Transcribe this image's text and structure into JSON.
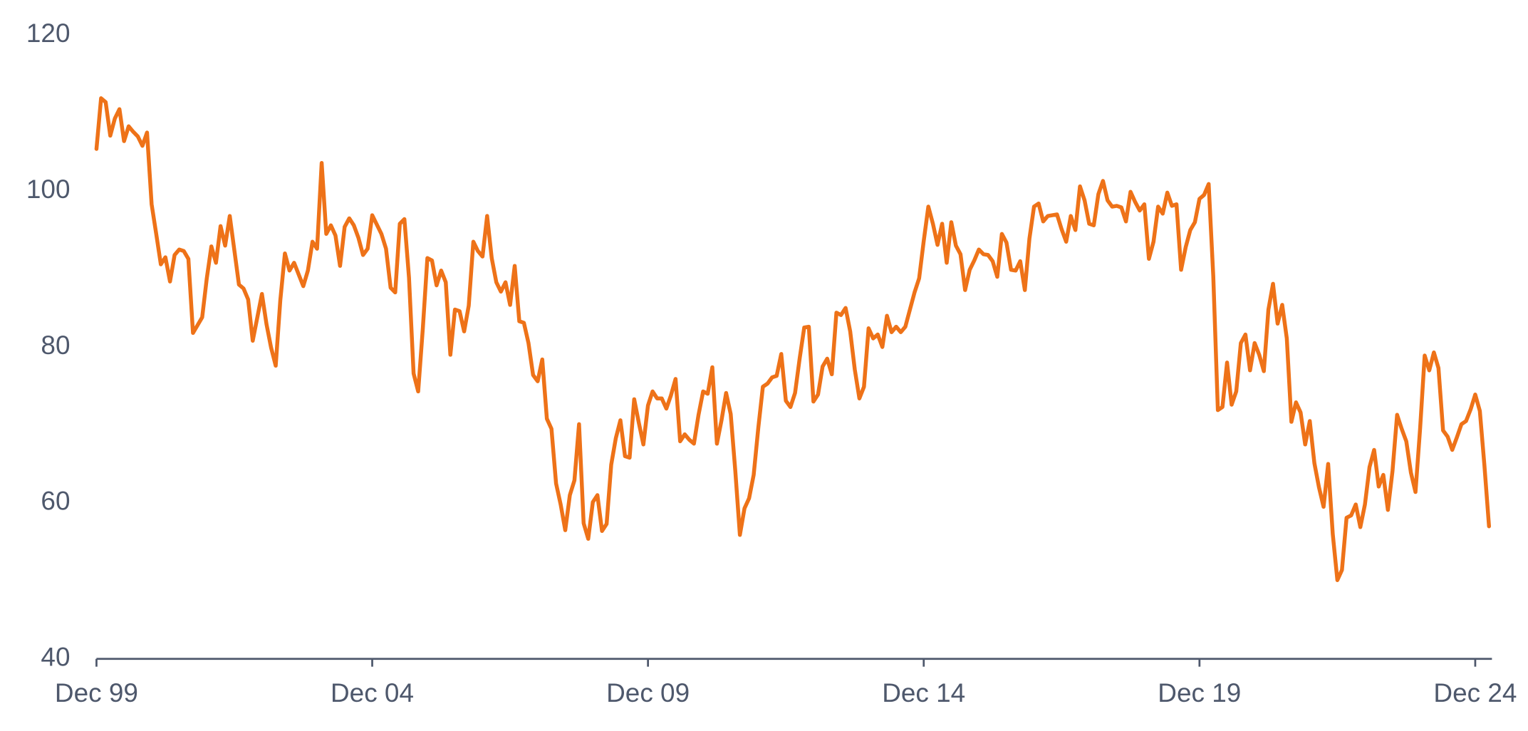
{
  "chart_data": {
    "type": "line",
    "categories": [
      "Dec 99",
      null,
      null,
      null,
      null,
      null,
      null,
      null,
      null,
      null,
      null,
      null,
      null,
      null,
      null,
      null,
      null,
      null,
      null,
      null,
      null,
      null,
      null,
      null,
      null,
      null,
      null,
      null,
      null,
      null,
      null,
      null,
      null,
      null,
      null,
      null,
      null,
      null,
      null,
      null,
      null,
      null,
      null,
      null,
      null,
      null,
      null,
      null,
      null,
      null,
      null,
      null,
      null,
      null,
      null,
      null,
      null,
      null,
      null,
      null,
      "Dec 04",
      null,
      null,
      null,
      null,
      null,
      null,
      null,
      null,
      null,
      null,
      null,
      null,
      null,
      null,
      null,
      null,
      null,
      null,
      null,
      null,
      null,
      null,
      null,
      null,
      null,
      null,
      null,
      null,
      null,
      null,
      null,
      null,
      null,
      null,
      null,
      null,
      null,
      null,
      null,
      null,
      null,
      null,
      null,
      null,
      null,
      null,
      null,
      null,
      null,
      null,
      null,
      null,
      null,
      null,
      null,
      null,
      null,
      null,
      null,
      "Dec 09",
      null,
      null,
      null,
      null,
      null,
      null,
      null,
      null,
      null,
      null,
      null,
      null,
      null,
      null,
      null,
      null,
      null,
      null,
      null,
      null,
      null,
      null,
      null,
      null,
      null,
      null,
      null,
      null,
      null,
      null,
      null,
      null,
      null,
      null,
      null,
      null,
      null,
      null,
      null,
      null,
      null,
      null,
      null,
      null,
      null,
      null,
      null,
      null,
      null,
      null,
      null,
      null,
      null,
      null,
      null,
      null,
      null,
      null,
      null,
      "Dec 14",
      null,
      null,
      null,
      null,
      null,
      null,
      null,
      null,
      null,
      null,
      null,
      null,
      null,
      null,
      null,
      null,
      null,
      null,
      null,
      null,
      null,
      null,
      null,
      null,
      null,
      null,
      null,
      null,
      null,
      null,
      null,
      null,
      null,
      null,
      null,
      null,
      null,
      null,
      null,
      null,
      null,
      null,
      null,
      null,
      null,
      null,
      null,
      null,
      null,
      null,
      null,
      null,
      null,
      null,
      null,
      null,
      null,
      null,
      null,
      "Dec 19",
      null,
      null,
      null,
      null,
      null,
      null,
      null,
      null,
      null,
      null,
      null,
      null,
      null,
      null,
      null,
      null,
      null,
      null,
      null,
      null,
      null,
      null,
      null,
      null,
      null,
      null,
      null,
      null,
      null,
      null,
      null,
      null,
      null,
      null,
      null,
      null,
      null,
      null,
      null,
      null,
      null,
      null,
      null,
      null,
      null,
      null,
      null,
      null,
      null,
      null,
      null,
      null,
      null,
      null,
      null,
      null,
      null,
      null,
      null,
      "Dec 24",
      null,
      null,
      null
    ],
    "series": [
      {
        "color": "#ee7218",
        "values": [
          105.4,
          111.9,
          111.4,
          107.1,
          109.3,
          110.5,
          106.4,
          108.3,
          107.6,
          107.0,
          105.8,
          107.5,
          98.3,
          94.5,
          90.6,
          91.5,
          88.4,
          91.8,
          92.5,
          92.3,
          91.3,
          81.8,
          82.8,
          83.8,
          88.8,
          92.9,
          90.8,
          95.5,
          93.0,
          96.8,
          92.4,
          88.0,
          87.5,
          86.1,
          80.8,
          83.8,
          86.8,
          82.9,
          79.9,
          77.6,
          86.0,
          92.0,
          89.8,
          90.8,
          89.3,
          87.8,
          89.8,
          93.5,
          92.6,
          103.6,
          94.5,
          95.6,
          94.3,
          90.4,
          95.4,
          96.5,
          95.6,
          94.0,
          91.8,
          92.6,
          96.9,
          95.7,
          94.5,
          92.6,
          87.6,
          87.0,
          95.8,
          96.4,
          88.9,
          76.6,
          74.3,
          82.3,
          91.4,
          91.1,
          87.9,
          89.8,
          88.3,
          79.0,
          84.8,
          84.6,
          82.0,
          85.3,
          93.5,
          92.3,
          91.6,
          96.8,
          91.4,
          88.3,
          87.1,
          88.3,
          85.4,
          90.4,
          83.3,
          83.1,
          80.5,
          76.4,
          75.6,
          78.4,
          70.8,
          69.5,
          62.5,
          59.8,
          56.5,
          61.0,
          62.9,
          70.1,
          57.4,
          55.4,
          60.1,
          61.0,
          56.4,
          57.3,
          64.9,
          68.3,
          70.6,
          66.0,
          65.8,
          73.3,
          70.3,
          67.5,
          72.5,
          74.3,
          73.4,
          73.4,
          72.1,
          73.8,
          75.9,
          67.9,
          68.8,
          68.1,
          67.6,
          71.3,
          74.3,
          74.0,
          77.4,
          67.6,
          70.6,
          74.1,
          71.4,
          64.1,
          55.9,
          59.3,
          60.6,
          63.6,
          69.6,
          74.9,
          75.3,
          76.1,
          76.3,
          79.1,
          73.1,
          72.3,
          74.1,
          78.5,
          82.5,
          82.6,
          73.0,
          73.9,
          77.5,
          78.5,
          76.5,
          84.4,
          84.1,
          85.0,
          82.0,
          77.1,
          73.4,
          74.9,
          82.4,
          81.1,
          81.6,
          80.0,
          84.0,
          81.9,
          82.6,
          81.9,
          82.6,
          84.8,
          87.0,
          88.8,
          93.6,
          98.0,
          95.8,
          93.1,
          95.8,
          90.8,
          96.0,
          93.0,
          91.9,
          87.3,
          89.9,
          91.1,
          92.5,
          91.9,
          91.8,
          91.0,
          89.0,
          94.5,
          93.4,
          89.9,
          89.8,
          91.0,
          87.3,
          93.9,
          98.0,
          98.4,
          96.1,
          96.8,
          96.9,
          97.0,
          95.1,
          93.5,
          96.8,
          95.0,
          100.6,
          98.8,
          95.8,
          95.6,
          99.6,
          101.3,
          98.8,
          98.0,
          98.1,
          97.9,
          96.1,
          99.9,
          98.6,
          97.5,
          98.3,
          91.3,
          93.5,
          98.0,
          97.1,
          99.8,
          98.1,
          98.3,
          89.9,
          92.8,
          95.0,
          96.0,
          99.0,
          99.5,
          100.9,
          89.1,
          71.9,
          72.3,
          78.0,
          72.6,
          74.3,
          80.5,
          81.6,
          77.0,
          80.5,
          79.0,
          76.9,
          84.8,
          88.1,
          83.0,
          85.4,
          81.1,
          70.4,
          72.9,
          71.6,
          67.5,
          70.5,
          65.1,
          62.0,
          59.5,
          65.0,
          56.0,
          50.1,
          51.4,
          58.1,
          58.4,
          59.8,
          56.9,
          59.8,
          64.6,
          66.8,
          62.1,
          63.6,
          59.1,
          64.1,
          71.3,
          69.5,
          67.9,
          63.9,
          61.4,
          69.5,
          78.9,
          77.0,
          79.3,
          77.3,
          69.3,
          68.5,
          66.8,
          68.4,
          70.1,
          70.5,
          72.0,
          73.9,
          71.8,
          64.8,
          57.0
        ]
      }
    ],
    "ylim": [
      40,
      120
    ],
    "yticks": [
      40,
      60,
      80,
      100,
      120
    ]
  }
}
